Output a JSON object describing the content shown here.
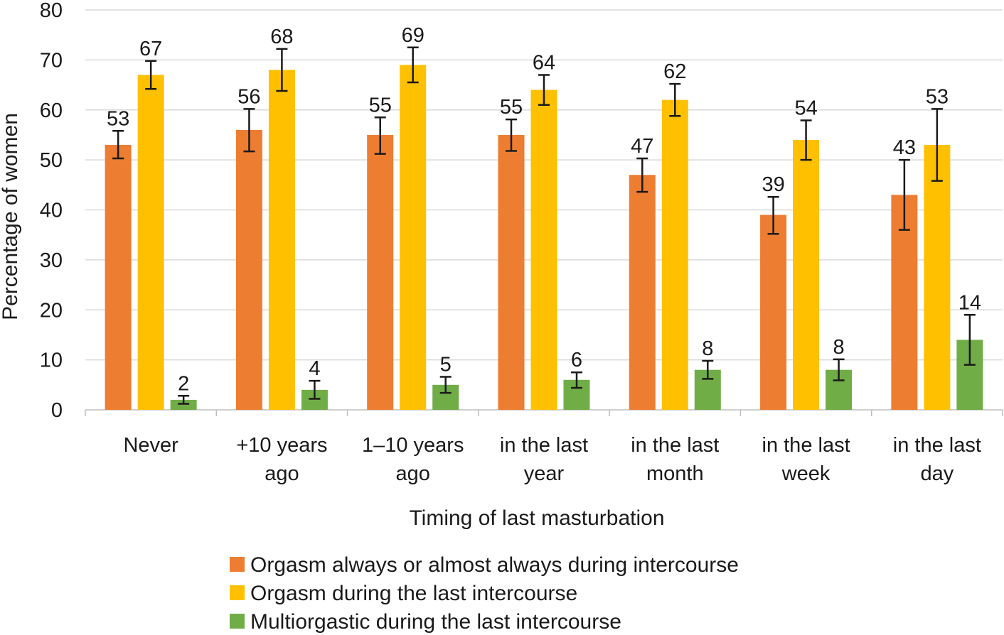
{
  "chart_data": {
    "type": "bar",
    "title": "",
    "xlabel": "Timing of last masturbation",
    "ylabel": "Percentage of women",
    "ylim": [
      0,
      80
    ],
    "yticks": [
      0,
      10,
      20,
      30,
      40,
      50,
      60,
      70,
      80
    ],
    "grid": true,
    "legend_position": "bottom",
    "categories": [
      [
        "Never"
      ],
      [
        "+10 years",
        "ago"
      ],
      [
        "1–10 years",
        "ago"
      ],
      [
        "in the last",
        "year"
      ],
      [
        "in the last",
        "month"
      ],
      [
        "in the last",
        "week"
      ],
      [
        "in the last",
        "day"
      ]
    ],
    "series": [
      {
        "name": "Orgasm always or almost always during intercourse",
        "color": "#ED7D31",
        "values": [
          53,
          56,
          55,
          55,
          47,
          39,
          43
        ],
        "error_low": [
          50.3,
          51.7,
          51.2,
          51.8,
          43.6,
          35.2,
          36.0
        ],
        "error_high": [
          55.8,
          60.2,
          58.5,
          58.1,
          50.3,
          42.6,
          50.0
        ]
      },
      {
        "name": "Orgasm during the last intercourse",
        "color": "#FFC000",
        "values": [
          67,
          68,
          69,
          64,
          62,
          54,
          53
        ],
        "error_low": [
          64.2,
          63.8,
          65.5,
          61.0,
          58.8,
          50.0,
          45.8
        ],
        "error_high": [
          69.8,
          72.2,
          72.5,
          67.0,
          65.2,
          57.9,
          60.2
        ]
      },
      {
        "name": "Multiorgastic during the last intercourse",
        "color": "#70AD47",
        "values": [
          2,
          4,
          5,
          6,
          8,
          8,
          14
        ],
        "error_low": [
          1.2,
          2.2,
          3.4,
          4.4,
          6.2,
          5.9,
          9.0
        ],
        "error_high": [
          2.8,
          5.8,
          6.6,
          7.5,
          9.8,
          10.1,
          19.0
        ]
      }
    ]
  }
}
